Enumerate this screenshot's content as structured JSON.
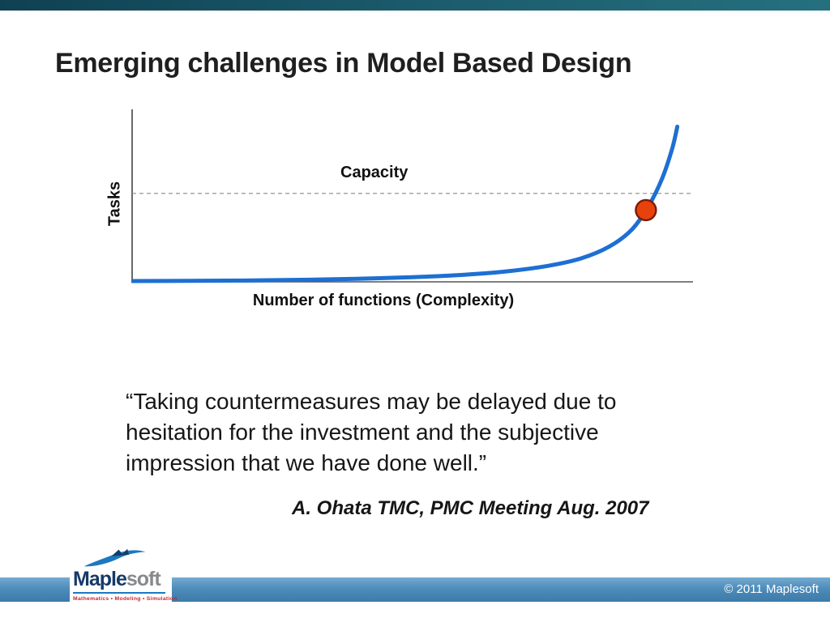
{
  "slide": {
    "title": "Emerging challenges in Model Based Design"
  },
  "figure": {
    "y_axis_label": "Tasks",
    "x_axis_label": "Number of functions (Complexity)",
    "capacity_label": "Capacity"
  },
  "chart_data": {
    "type": "line",
    "title": "",
    "xlabel": "Number of functions (Complexity)",
    "ylabel": "Tasks",
    "x_range": [
      0,
      1
    ],
    "y_range": [
      0,
      1
    ],
    "grid": false,
    "axes_ticks": "none (conceptual sketch, unlabeled axes)",
    "series": [
      {
        "name": "tasks-growth-curve",
        "style": "smooth exponential rise",
        "color": "#1e6fd2",
        "points": [
          [
            0.0,
            0.005
          ],
          [
            0.1,
            0.006
          ],
          [
            0.2,
            0.008
          ],
          [
            0.3,
            0.012
          ],
          [
            0.4,
            0.018
          ],
          [
            0.5,
            0.028
          ],
          [
            0.58,
            0.04
          ],
          [
            0.66,
            0.06
          ],
          [
            0.74,
            0.095
          ],
          [
            0.8,
            0.14
          ],
          [
            0.85,
            0.21
          ],
          [
            0.89,
            0.31
          ],
          [
            0.92,
            0.45
          ],
          [
            0.945,
            0.62
          ],
          [
            0.963,
            0.8
          ],
          [
            0.972,
            0.93
          ]
        ]
      }
    ],
    "reference_line": {
      "label": "Capacity",
      "orientation": "horizontal",
      "level": 0.53,
      "style": "dashed",
      "color": "#8a8a8a"
    },
    "marker": {
      "x": 0.916,
      "y": 0.43,
      "shape": "circle",
      "fill": "#e8420c",
      "stroke": "#7a1c06",
      "radius_px": 12.5
    }
  },
  "quote": {
    "lines": [
      "“Taking countermeasures may be delayed due to",
      "hesitation for the investment and the subjective",
      "impression that we have done well.”"
    ],
    "attribution": "A. Ohata TMC, PMC Meeting Aug. 2007"
  },
  "footer": {
    "copyright": "© 2011 Maplesoft"
  },
  "logo": {
    "brand_primary": "Maple",
    "brand_secondary": "soft",
    "tagline": "Mathematics • Modeling • Simulation"
  },
  "colors": {
    "curve": "#1e6fd2",
    "marker_fill": "#e8420c",
    "marker_stroke": "#7a1c06",
    "capacity_line": "#8a8a8a",
    "axis": "#444444",
    "topbar_start": "#0f4152",
    "topbar_end": "#25707f",
    "footer_start": "#73abd0",
    "footer_end": "#3c7aa9",
    "logo_blue": "#1b79c0",
    "logo_navy": "#163a66",
    "logo_gray": "#87898b",
    "logo_red": "#c9242b"
  }
}
